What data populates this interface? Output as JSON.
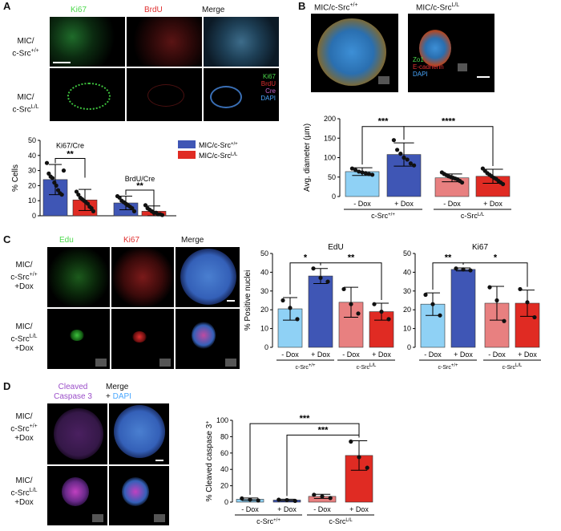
{
  "panels": {
    "A": {
      "label": "A",
      "columns": [
        "Ki67",
        "BrdU",
        "Merge"
      ],
      "column_colors": [
        "#4cd94c",
        "#e03030",
        "#222222"
      ],
      "rows": [
        {
          "line1": "MIC/",
          "line2": "c-Src",
          "sup": "+/+"
        },
        {
          "line1": "MIC/",
          "line2": "c-Src",
          "sup": "L/L"
        }
      ],
      "merge_legend": [
        {
          "text": "Ki67",
          "color": "#4cd94c"
        },
        {
          "text": "BrdU",
          "color": "#e03030"
        },
        {
          "text": "Cre",
          "color": "#cc66cc"
        },
        {
          "text": "DAPI",
          "color": "#4aa8ff"
        }
      ]
    },
    "B": {
      "label": "B",
      "columns": [
        {
          "text": "MIC/c-Src",
          "sup": "+/+"
        },
        {
          "text": "MIC/c-Src",
          "sup": "L/L"
        }
      ],
      "legend": [
        {
          "text": "Zo1",
          "color": "#4cd94c"
        },
        {
          "text": "E-cadherin",
          "color": "#e03030"
        },
        {
          "text": "DAPI",
          "color": "#4aa8ff"
        }
      ]
    },
    "C": {
      "label": "C",
      "columns": [
        "Edu",
        "Ki67",
        "Merge"
      ],
      "column_colors": [
        "#4cd94c",
        "#e03030",
        "#222222"
      ],
      "rows": [
        {
          "line1": "MIC/",
          "line2": "c-Src",
          "sup": "+/+",
          "line3": "+Dox"
        },
        {
          "line1": "MIC/",
          "line2": "c-Src",
          "sup": "L/L",
          "line3": "+Dox"
        }
      ]
    },
    "D": {
      "label": "D",
      "columns": [
        {
          "line1": "Cleaved",
          "line2": "Caspase 3",
          "color": "#9b4fc9"
        },
        {
          "line1": "Merge",
          "line2": "+ ",
          "line2b": "DAPI",
          "color": "#222222",
          "color2": "#4aa8ff"
        }
      ],
      "rows": [
        {
          "line1": "MIC/",
          "line2": "c-Src",
          "sup": "+/+",
          "line3": "+Dox"
        },
        {
          "line1": "MIC/",
          "line2": "c-Src",
          "sup": "L/L",
          "line3": "+Dox"
        }
      ]
    }
  },
  "colors": {
    "wt_dark": "#3f56b5",
    "ko_red": "#e02b23",
    "light_blue": "#8fd1f5",
    "light_red": "#e88080"
  },
  "chart_data": [
    {
      "id": "A",
      "type": "bar",
      "ylabel": "% Cells",
      "ylim": [
        0,
        50
      ],
      "yticks": [
        0,
        10,
        20,
        30,
        40,
        50
      ],
      "groups": [
        "Ki67/Cre",
        "BrdU/Cre"
      ],
      "series": [
        {
          "name": "MIC/c-Src+/+",
          "legend_text": "MIC/c-Src",
          "legend_sup": "+/+",
          "values": [
            24,
            8.5
          ]
        },
        {
          "name": "MIC/c-SrcL/L",
          "legend_text": "MIC/c-Src",
          "legend_sup": "L/L",
          "values": [
            10.5,
            3
          ]
        }
      ],
      "errors": [
        [
          10,
          4.5
        ],
        [
          7,
          3.5
        ]
      ],
      "significance": [
        "**",
        "**"
      ],
      "points": [
        [
          [
            35,
            28,
            26,
            25,
            22,
            20,
            17,
            15,
            14,
            30
          ],
          [
            16,
            14,
            12,
            11,
            10,
            9,
            8,
            6,
            5,
            3
          ]
        ],
        [
          [
            13,
            12,
            10,
            9,
            8,
            7,
            6,
            5,
            3
          ],
          [
            7,
            5,
            4,
            3,
            2,
            2,
            1,
            1,
            0.5
          ]
        ]
      ]
    },
    {
      "id": "B",
      "type": "bar",
      "ylabel": "Avg. diameter (µm)",
      "ylim": [
        0,
        200
      ],
      "yticks": [
        0,
        50,
        100,
        150,
        200
      ],
      "categories": [
        "- Dox",
        "+ Dox",
        "- Dox",
        "+ Dox"
      ],
      "genotypes": [
        {
          "text": "c-Src",
          "sup": "+/+"
        },
        {
          "text": "c-Src",
          "sup": "L/L"
        }
      ],
      "values": [
        64,
        108,
        48,
        52
      ],
      "errors": [
        10,
        30,
        10,
        18
      ],
      "bar_colors": [
        "#8fd1f5",
        "#3f56b5",
        "#e88080",
        "#e02b23"
      ],
      "points": [
        [
          72,
          68,
          64,
          62,
          60,
          58,
          56
        ],
        [
          145,
          120,
          110,
          100,
          95,
          85,
          80
        ],
        [
          62,
          58,
          55,
          52,
          50,
          48,
          46,
          44,
          40,
          36
        ],
        [
          72,
          66,
          60,
          56,
          52,
          48,
          45,
          40,
          36,
          32
        ]
      ],
      "significance": [
        {
          "from": 0,
          "to": 1,
          "text": "***"
        },
        {
          "from": 1,
          "to": 3,
          "text": "****"
        }
      ]
    },
    {
      "id": "C-EdU",
      "type": "bar",
      "title": "EdU",
      "ylabel": "% Positive nuclei",
      "ylim": [
        0,
        50
      ],
      "yticks": [
        0,
        10,
        20,
        30,
        40,
        50
      ],
      "categories": [
        "- Dox",
        "+ Dox",
        "- Dox",
        "+ Dox"
      ],
      "genotypes": [
        {
          "text": "c-Src",
          "sup": "+/+"
        },
        {
          "text": "c-Src",
          "sup": "L/L"
        }
      ],
      "values": [
        20.5,
        38,
        24,
        19
      ],
      "errors": [
        6,
        4,
        8,
        4.5
      ],
      "bar_colors": [
        "#8fd1f5",
        "#3f56b5",
        "#e88080",
        "#e02b23"
      ],
      "points": [
        [
          25,
          21,
          15
        ],
        [
          42,
          37,
          35
        ],
        [
          31,
          23,
          18
        ],
        [
          23,
          19,
          15
        ]
      ],
      "significance": [
        {
          "from": 0,
          "to": 1,
          "text": "*"
        },
        {
          "from": 1,
          "to": 3,
          "text": "**"
        }
      ]
    },
    {
      "id": "C-Ki67",
      "type": "bar",
      "title": "Ki67",
      "ylim": [
        0,
        50
      ],
      "yticks": [
        0,
        10,
        20,
        30,
        40,
        50
      ],
      "categories": [
        "- Dox",
        "+ Dox",
        "- Dox",
        "+ Dox"
      ],
      "genotypes": [
        {
          "text": "c-Src",
          "sup": "+/+"
        },
        {
          "text": "c-Src",
          "sup": "L/L"
        }
      ],
      "values": [
        23,
        41.5,
        23.5,
        23.5
      ],
      "errors": [
        6,
        0.8,
        9,
        7
      ],
      "bar_colors": [
        "#8fd1f5",
        "#3f56b5",
        "#e88080",
        "#e02b23"
      ],
      "points": [
        [
          28,
          23,
          17
        ],
        [
          42,
          41.5,
          41
        ],
        [
          32,
          25,
          14
        ],
        [
          31,
          24,
          16
        ]
      ],
      "significance": [
        {
          "from": 0,
          "to": 1,
          "text": "**"
        },
        {
          "from": 1,
          "to": 3,
          "text": "*"
        }
      ]
    },
    {
      "id": "D",
      "type": "bar",
      "ylabel": "% Cleaved caspase 3",
      "ylabel_sup": "+",
      "ylim": [
        0,
        100
      ],
      "yticks": [
        0,
        20,
        40,
        60,
        80,
        100
      ],
      "categories": [
        "- Dox",
        "+ Dox",
        "- Dox",
        "+ Dox"
      ],
      "genotypes": [
        {
          "text": "c-Src",
          "sup": "+/+"
        },
        {
          "text": "c-Src",
          "sup": "L/L"
        }
      ],
      "values": [
        3.5,
        2.5,
        7,
        57
      ],
      "errors": [
        1.5,
        1,
        2.5,
        18
      ],
      "bar_colors": [
        "#8fd1f5",
        "#3f56b5",
        "#e88080",
        "#e02b23"
      ],
      "points": [
        [
          4.5,
          3,
          2
        ],
        [
          3,
          2.5,
          1.5
        ],
        [
          9,
          7,
          5
        ],
        [
          74,
          55,
          42
        ]
      ],
      "significance": [
        {
          "from": 0,
          "to": 3,
          "text": "***"
        },
        {
          "from": 1,
          "to": 3,
          "text": "***"
        }
      ]
    }
  ]
}
